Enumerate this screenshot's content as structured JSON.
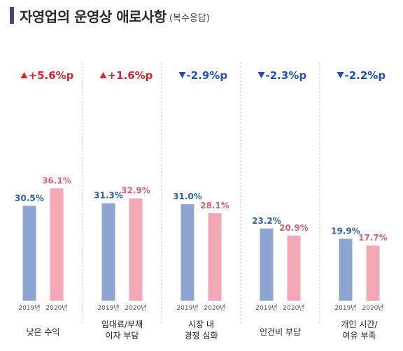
{
  "header": {
    "title": "자영업의 운영상 애로사항",
    "subtitle": "(복수응답)"
  },
  "colors": {
    "bar_2019": "#8fa5d1",
    "bar_2020": "#f2a9b5",
    "label_2019": "#2f63a8",
    "label_2020": "#e0607a",
    "delta_up": "#e0202a",
    "delta_down": "#1f4fc4",
    "divider": "#b9b9b9"
  },
  "chart_data": {
    "type": "bar",
    "title": "자영업의 운영상 애로사항",
    "subtitle": "(복수응답)",
    "categories": [
      [
        "낮은 수익"
      ],
      [
        "임대료/부채",
        "이자 부담"
      ],
      [
        "시장 내",
        "경쟁 심화"
      ],
      [
        "인건비 부담"
      ],
      [
        "개인 시간/",
        "여유 부족"
      ]
    ],
    "x_labels": [
      "2019년",
      "2020년"
    ],
    "series": [
      {
        "name": "2019년",
        "values": [
          30.5,
          31.3,
          31.0,
          23.2,
          19.9
        ]
      },
      {
        "name": "2020년",
        "values": [
          36.1,
          32.9,
          28.1,
          20.9,
          17.7
        ]
      }
    ],
    "value_labels": [
      [
        "30.5%",
        "36.1%"
      ],
      [
        "31.3%",
        "32.9%"
      ],
      [
        "31.0%",
        "28.1%"
      ],
      [
        "23.2%",
        "20.9%"
      ],
      [
        "19.9%",
        "17.7%"
      ]
    ],
    "deltas": [
      {
        "dir": "up",
        "text": "+5.6%p"
      },
      {
        "dir": "up",
        "text": "+1.6%p"
      },
      {
        "dir": "down",
        "text": "-2.9%p"
      },
      {
        "dir": "down",
        "text": "-2.3%p"
      },
      {
        "dir": "down",
        "text": "-2.2%p"
      }
    ],
    "ylim": [
      0,
      45
    ],
    "grid": false,
    "legend": "none"
  }
}
